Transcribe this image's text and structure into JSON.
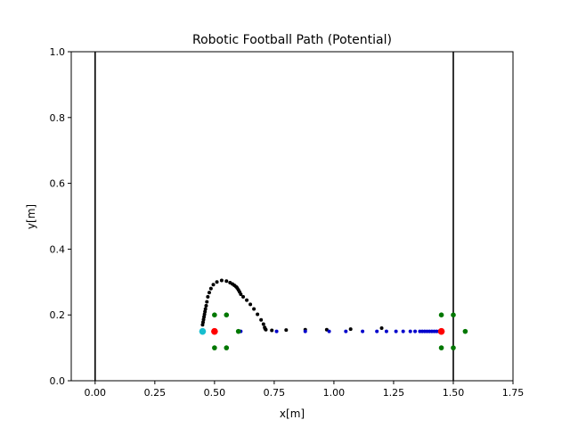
{
  "chart_data": {
    "type": "scatter",
    "title": "Robotic Football Path  (Potential)",
    "xlabel": "x[m]",
    "ylabel": "y[m]",
    "xlim": [
      -0.1,
      1.75
    ],
    "ylim": [
      0.0,
      1.0
    ],
    "xticks": [
      "0.00",
      "0.25",
      "0.50",
      "0.75",
      "1.00",
      "1.25",
      "1.50",
      "1.75"
    ],
    "yticks": [
      "0.0",
      "0.2",
      "0.4",
      "0.6",
      "0.8",
      "1.0"
    ],
    "grid": false,
    "vertical_lines": [
      0.0,
      1.5
    ],
    "series": [
      {
        "color": "#000000",
        "marker": "small-dot",
        "x": [
          0.45,
          0.452,
          0.454,
          0.456,
          0.458,
          0.46,
          0.462,
          0.465,
          0.468,
          0.472,
          0.478,
          0.485,
          0.495,
          0.51,
          0.53,
          0.55,
          0.565,
          0.575,
          0.583,
          0.59,
          0.595,
          0.6,
          0.605,
          0.61,
          0.62,
          0.635,
          0.65,
          0.665,
          0.68,
          0.695,
          0.705,
          0.71,
          0.712,
          0.715,
          0.74,
          0.8,
          0.88,
          0.97,
          1.07,
          1.2
        ],
        "y": [
          0.17,
          0.178,
          0.186,
          0.194,
          0.202,
          0.21,
          0.218,
          0.228,
          0.24,
          0.255,
          0.268,
          0.28,
          0.292,
          0.3,
          0.305,
          0.303,
          0.298,
          0.294,
          0.29,
          0.286,
          0.282,
          0.276,
          0.27,
          0.263,
          0.255,
          0.245,
          0.232,
          0.218,
          0.202,
          0.185,
          0.172,
          0.162,
          0.158,
          0.155,
          0.153,
          0.154,
          0.155,
          0.155,
          0.157,
          0.16
        ]
      },
      {
        "color": "#0000cc",
        "marker": "small-dot",
        "x": [
          0.61,
          0.76,
          0.88,
          0.98,
          1.05,
          1.12,
          1.18,
          1.22,
          1.26,
          1.29,
          1.32,
          1.34,
          1.36,
          1.37,
          1.38,
          1.39,
          1.4,
          1.41,
          1.42,
          1.43,
          1.44,
          1.45
        ],
        "y": [
          0.15,
          0.15,
          0.15,
          0.15,
          0.15,
          0.15,
          0.15,
          0.15,
          0.15,
          0.15,
          0.15,
          0.15,
          0.15,
          0.15,
          0.15,
          0.15,
          0.15,
          0.15,
          0.15,
          0.15,
          0.15,
          0.15
        ]
      },
      {
        "color": "#007700",
        "marker": "dot",
        "x": [
          0.5,
          0.55,
          0.5,
          0.55,
          0.6,
          1.45,
          1.5,
          1.45,
          1.5,
          1.55
        ],
        "y": [
          0.2,
          0.2,
          0.1,
          0.1,
          0.15,
          0.2,
          0.2,
          0.1,
          0.1,
          0.15
        ]
      },
      {
        "color": "#ff0000",
        "marker": "large-dot",
        "x": [
          0.5,
          1.45
        ],
        "y": [
          0.15,
          0.15
        ]
      },
      {
        "color": "#17becf",
        "marker": "large-dot",
        "x": [
          0.45
        ],
        "y": [
          0.15
        ]
      }
    ]
  }
}
